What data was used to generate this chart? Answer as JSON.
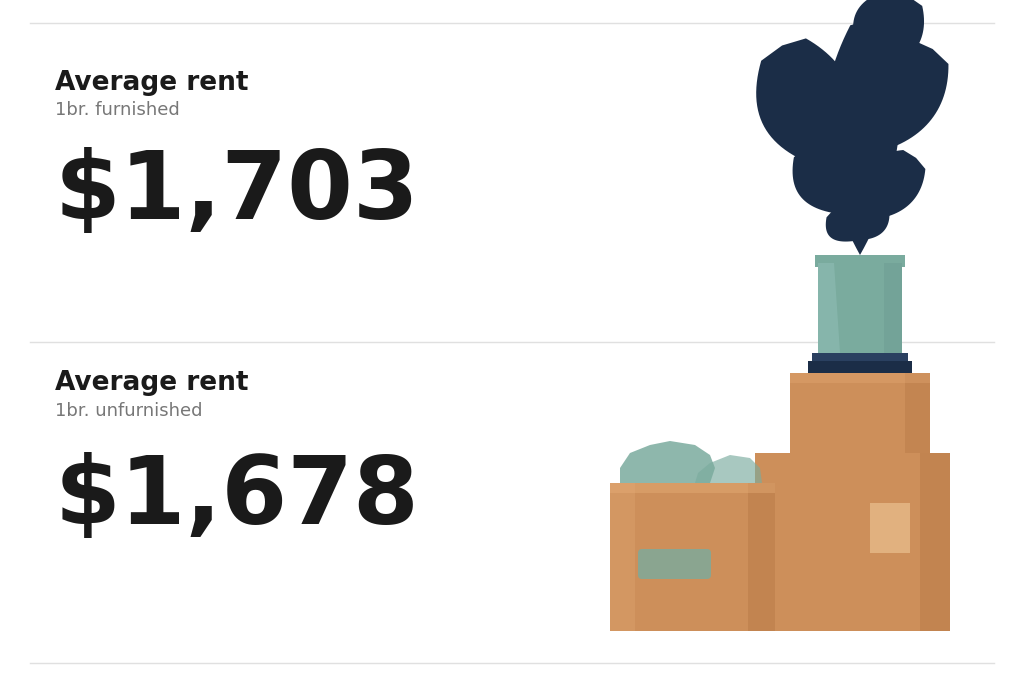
{
  "bg_color": "#ffffff",
  "divider_color": "#e0e0e0",
  "title1": "Average rent",
  "subtitle1": "1br. furnished",
  "value1": "$1,703",
  "title2": "Average rent",
  "subtitle2": "1br. unfurnished",
  "value2": "$1,678",
  "title_color": "#1a1a1a",
  "subtitle_color": "#777777",
  "value_color": "#1a1a1a",
  "title_fontsize": 19,
  "subtitle_fontsize": 13,
  "value_fontsize": 68,
  "dark_navy": "#1b2d47",
  "pot_color": "#7aab9e",
  "pot_highlight": "#8fbdb5",
  "pot_shadow": "#6a9990",
  "box_color": "#cd8f5a",
  "box_light": "#e8b07a",
  "box_shadow": "#b87a48",
  "box_highlight": "#f0c898",
  "teal_items": "#7aab9e"
}
